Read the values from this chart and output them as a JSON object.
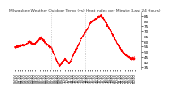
{
  "title": "Milwaukee Weather Outdoor Temp (vs) Heat Index per Minute (Last 24 Hours)",
  "line_color": "#ff0000",
  "background_color": "#ffffff",
  "vline_color": "#aaaaaa",
  "title_fontsize": 3.2,
  "tick_fontsize": 3.0,
  "ylim": [
    32,
    88
  ],
  "yticks": [
    35,
    40,
    45,
    50,
    55,
    60,
    65,
    70,
    75,
    80,
    85
  ],
  "vlines": [
    0.3,
    0.58
  ],
  "num_points": 1440,
  "noise_std": 0.6
}
